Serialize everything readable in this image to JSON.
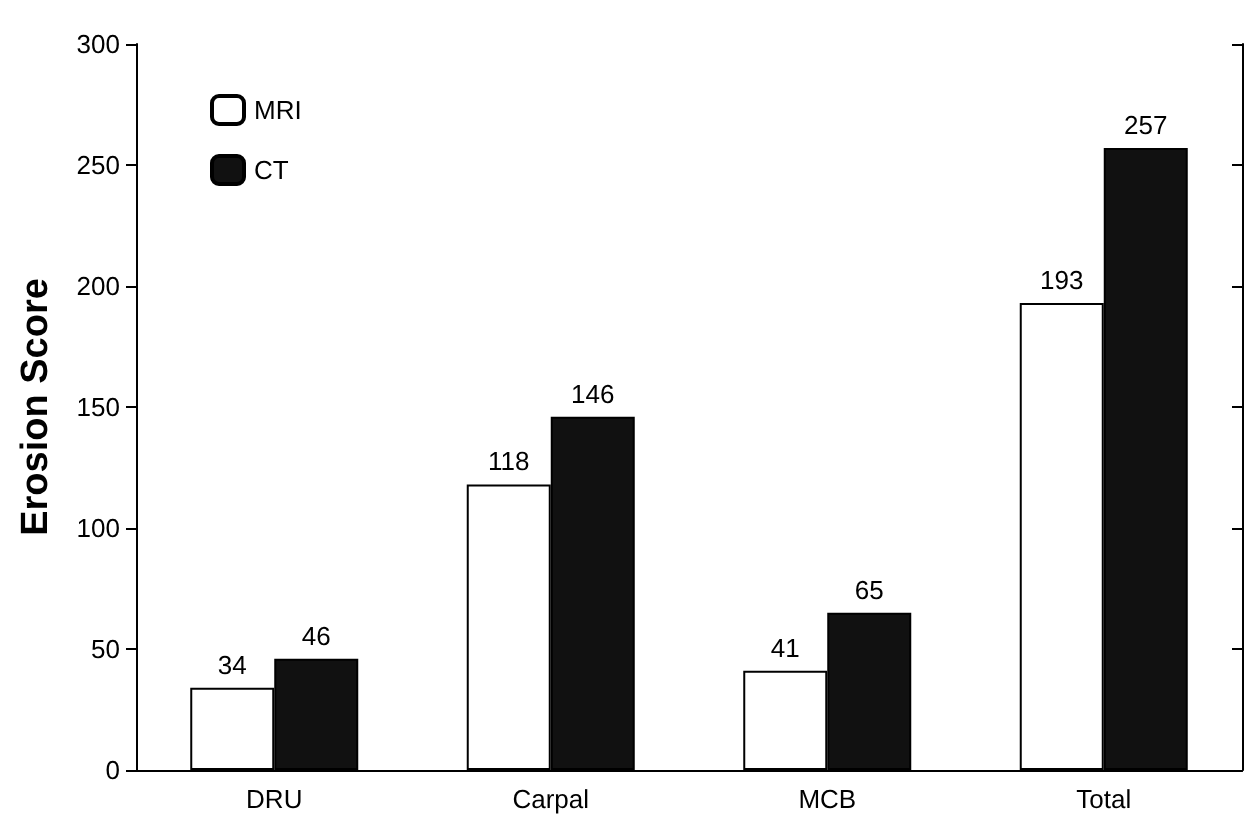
{
  "chart_data": {
    "type": "bar",
    "ylabel": "Erosion Score",
    "categories": [
      "DRU",
      "Carpal",
      "MCB",
      "Total"
    ],
    "series": [
      {
        "name": "MRI",
        "color": "#ffffff",
        "values": [
          34,
          118,
          41,
          193
        ]
      },
      {
        "name": "CT",
        "color": "#111111",
        "values": [
          46,
          146,
          65,
          257
        ]
      }
    ],
    "ylim": [
      0,
      300
    ],
    "yticks": [
      0,
      50,
      100,
      150,
      200,
      250,
      300
    ],
    "data_labels": true,
    "legend": "top left",
    "grid": false
  }
}
